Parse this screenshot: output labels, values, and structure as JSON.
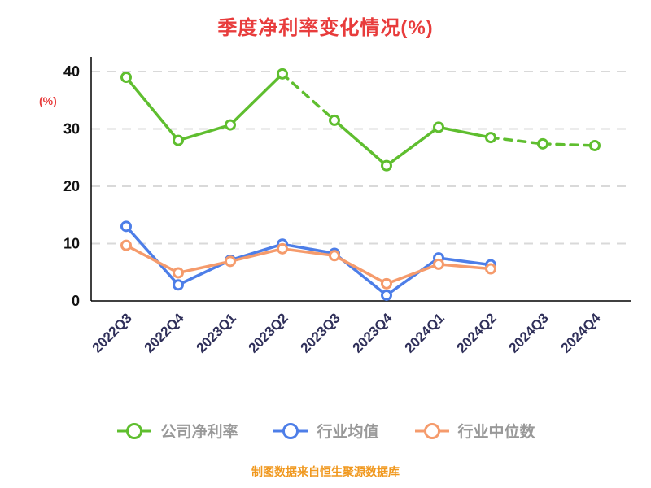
{
  "footer": "制图数据来自恒生聚源数据库",
  "colors": {
    "title": "#e83c3c",
    "y_axis_title": "#e83c3c",
    "axis_line": "#000000",
    "grid": "#d9d9d9",
    "x_tick_label": "#30305a",
    "y_tick_label": "#111111",
    "legend_text": "#999999",
    "footer": "#f0981e",
    "marker_fill": "#ffffff"
  },
  "chart_data": {
    "type": "line",
    "title": "季度净利率变化情况(%)",
    "ylabel": "(%)",
    "xlabel": "",
    "categories": [
      "2022Q3",
      "2022Q4",
      "2023Q1",
      "2023Q2",
      "2023Q3",
      "2023Q4",
      "2024Q1",
      "2024Q2",
      "2024Q3",
      "2024Q4"
    ],
    "series": [
      {
        "name": "公司净利率",
        "color": "#5fbe2f",
        "values": [
          39.0,
          28.0,
          30.7,
          39.6,
          31.5,
          23.6,
          30.3,
          28.5,
          27.4,
          27.1
        ],
        "dash_segments": [
          [
            3,
            4
          ],
          [
            7,
            8
          ],
          [
            8,
            9
          ]
        ]
      },
      {
        "name": "行业均值",
        "color": "#4d7ee8",
        "values": [
          13.0,
          2.8,
          7.1,
          9.9,
          8.3,
          1.0,
          7.5,
          6.3,
          null,
          null
        ],
        "dash_segments": []
      },
      {
        "name": "行业中位数",
        "color": "#f59b6c",
        "values": [
          9.7,
          4.9,
          6.9,
          9.1,
          7.9,
          3.0,
          6.4,
          5.6,
          null,
          null
        ],
        "dash_segments": []
      }
    ],
    "ylim": [
      0,
      40
    ],
    "yticks": [
      0,
      10,
      20,
      30,
      40
    ],
    "grid": "horizontal-dashed",
    "legend_position": "bottom"
  }
}
